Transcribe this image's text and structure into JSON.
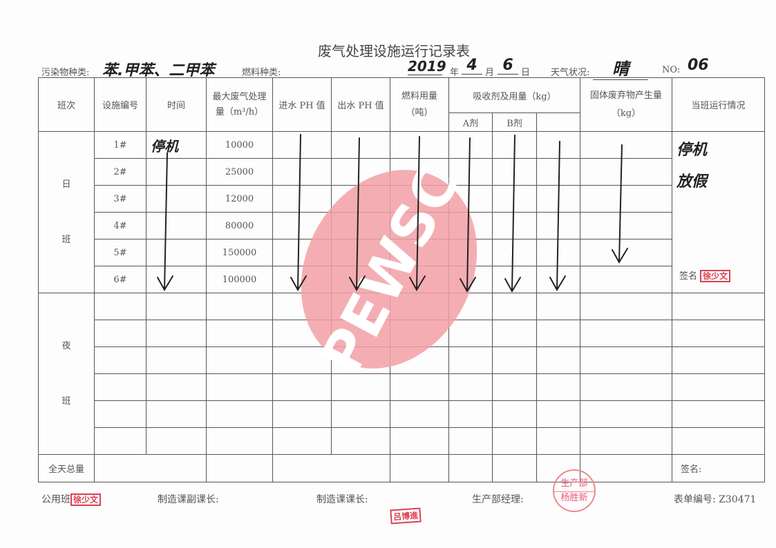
{
  "title": "废气处理设施运行记录表",
  "meta": {
    "pollutant_label": "污染物种类:",
    "pollutant_value": "苯.甲苯、二甲苯",
    "fuel_label": "燃料种类:",
    "year": "2019",
    "year_label": "年",
    "month": "4",
    "month_label": "月",
    "day": "6",
    "day_label": "日",
    "weather_label": "天气状况:",
    "weather_value": "晴",
    "no_label": "NO:",
    "no_value": "06"
  },
  "headers": {
    "shift": "班次",
    "facility_no": "设施编号",
    "time": "时间",
    "max_gas": "最大废气处理量（m³/h）",
    "inlet_ph": "进水 PH 值",
    "outlet_ph": "出水 PH 值",
    "fuel": "燃料用量（吨）",
    "absorbent": "吸收剂及用量（kg）",
    "agent_a": "A剂",
    "agent_b": "B剂",
    "solid_waste": "固体废弃物产生量（kg）",
    "status": "当班运行情况"
  },
  "day_shift": {
    "label": "日 班",
    "time_note": "停机",
    "rows": [
      {
        "no": "1#",
        "max": "10000"
      },
      {
        "no": "2#",
        "max": "25000"
      },
      {
        "no": "3#",
        "max": "12000"
      },
      {
        "no": "4#",
        "max": "80000"
      },
      {
        "no": "5#",
        "max": "150000"
      },
      {
        "no": "6#",
        "max": "100000"
      }
    ],
    "status_note": "停机 放假",
    "sign_label": "签名",
    "sign_stamp": "徐少文"
  },
  "night_shift": {
    "label": "夜 班"
  },
  "total": {
    "label": "全天总量",
    "sign_label": "签名:"
  },
  "footer": {
    "public_shift": "公用班",
    "public_stamp": "徐少文",
    "deputy": "制造课副课长:",
    "chief": "制造课课长:",
    "chief_stamp": "吕博進",
    "manager": "生产部经理:",
    "manager_stamp_top": "生产部",
    "manager_stamp_bottom": "杨胜新",
    "form_no": "表单编号: Z30471"
  },
  "watermark": {
    "text": "PEWSC",
    "color": "#f2a0a6"
  }
}
